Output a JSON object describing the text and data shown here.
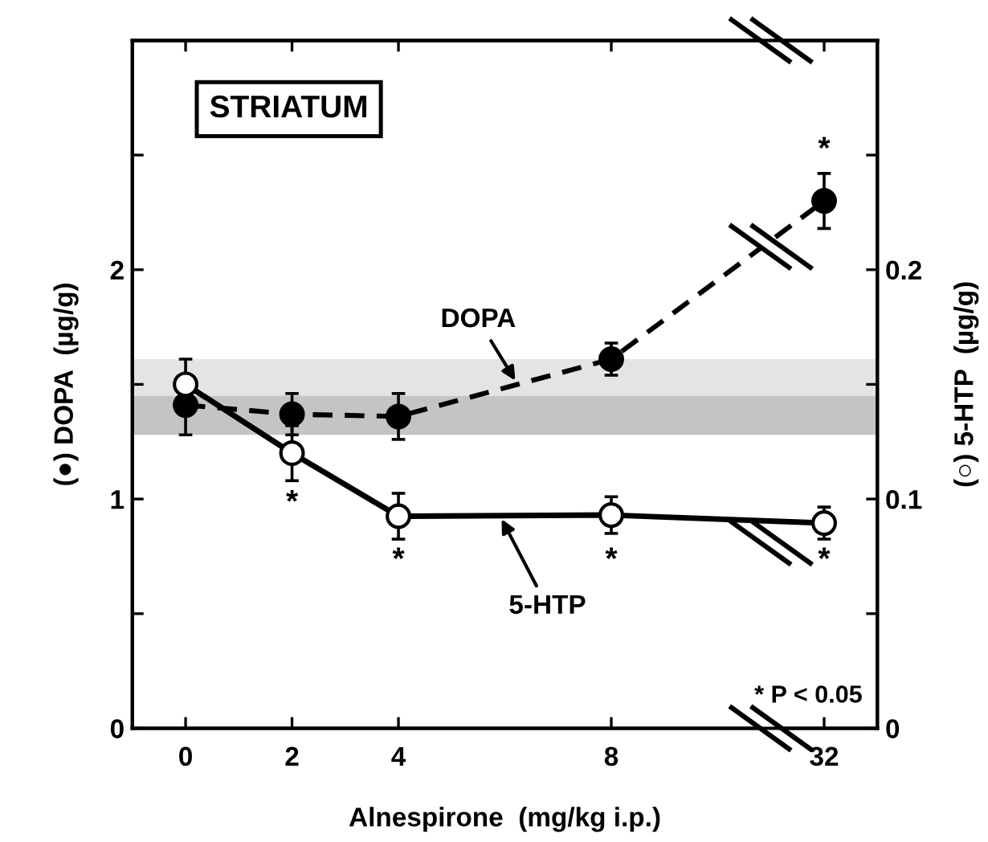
{
  "chart_data": {
    "type": "line",
    "categories": [
      "0",
      "2",
      "4",
      null,
      "8",
      null,
      "32"
    ],
    "xlabel": "Alnespirone  (mg/kg i.p.)",
    "ylabel": "(●) DOPA  (µg/g)",
    "y2label": "(○) 5-HTP  (µg/g)",
    "ylim": [
      0,
      3
    ],
    "yticks": [
      0,
      {
        "value": 0.5,
        "label": null
      },
      1,
      {
        "value": 1.5,
        "label": null
      },
      2,
      {
        "value": 2.5,
        "label": null
      },
      {
        "value": 3,
        "label": null
      }
    ],
    "y2lim": [
      0,
      0.3
    ],
    "y2ticks": [
      0,
      {
        "value": 0.05,
        "label": null
      },
      0.1,
      {
        "value": 0.15,
        "label": null
      },
      0.2,
      {
        "value": 0.25,
        "label": null
      },
      {
        "value": 0.3,
        "label": null
      }
    ],
    "series": [
      {
        "name": "DOPA",
        "color": "#000000",
        "marker": "circle",
        "line_style": "dashed",
        "values": [
          1.41,
          1.37,
          1.36,
          null,
          1.61,
          null,
          2.3
        ],
        "errors": [
          0.13,
          0.09,
          0.1,
          null,
          0.07,
          null,
          0.12
        ]
      },
      {
        "name": "5-HTP",
        "color": "#000000",
        "marker": "circle",
        "line_style": "solid",
        "axis": "y2",
        "values": [
          0.15,
          0.12,
          0.0925,
          null,
          0.093,
          null,
          0.0895
        ],
        "errors": [
          0.011,
          0.012,
          0.01,
          null,
          0.008,
          null,
          0.007
        ]
      }
    ],
    "bands": [
      {
        "axis": "y",
        "from": 1.45,
        "to": 1.61,
        "color": "#e4e4e4"
      },
      {
        "axis": "y",
        "from": 1.28,
        "to": 1.45,
        "color": "#c4c4c4"
      }
    ],
    "annotations": [
      "STRIATUM",
      "* P < 0.05",
      "*",
      "*",
      "*",
      "*",
      "*"
    ],
    "grid": false
  }
}
